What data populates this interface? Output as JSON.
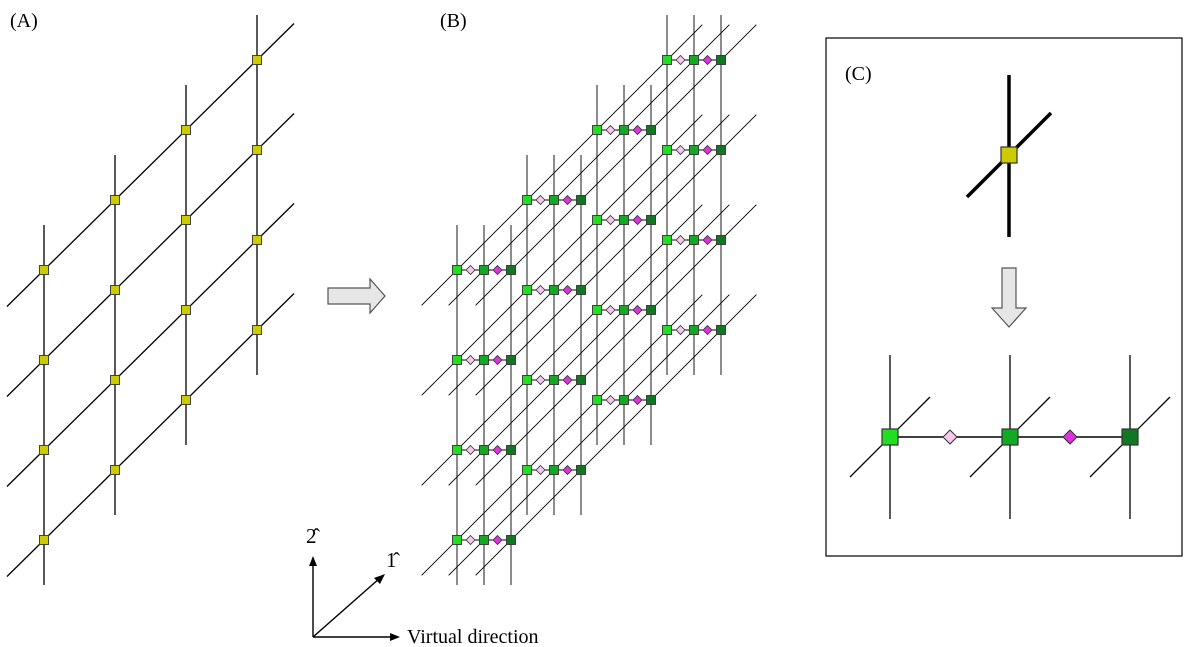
{
  "labels": {
    "panel_a": "(A)",
    "panel_b": "(B)",
    "panel_c": "(C)",
    "axis_1": "1̂",
    "axis_2": "2̂",
    "virtual_direction": "Virtual direction"
  },
  "panel_a": {
    "columns": 4,
    "rows": 4
  },
  "panel_b": {
    "columns": 4,
    "rows": 4,
    "virtual_sites_per_node": 3
  },
  "colors": {
    "original_node": "#cccc00",
    "virtual_node_1": "#22dd22",
    "virtual_node_2": "#11aa22",
    "virtual_node_3": "#117722",
    "diamond_light": "#f6c8ee",
    "diamond_dark": "#dd33dd",
    "arrow_fill": "#e6e6e6"
  }
}
